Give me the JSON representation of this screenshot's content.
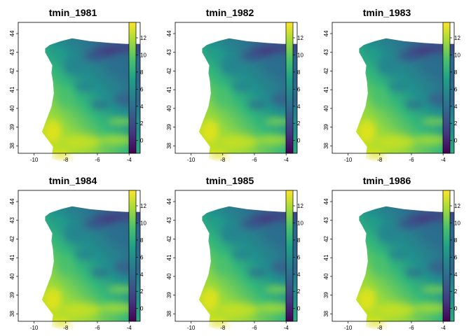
{
  "figure": {
    "panels": [
      {
        "title": "tmin_1981"
      },
      {
        "title": "tmin_1982"
      },
      {
        "title": "tmin_1983"
      },
      {
        "title": "tmin_1984"
      },
      {
        "title": "tmin_1985"
      },
      {
        "title": "tmin_1986"
      }
    ],
    "longitude_ticks": [
      "-10",
      "-8",
      "-6",
      "-4"
    ],
    "latitude_ticks": [
      "38",
      "39",
      "40",
      "41",
      "42",
      "43",
      "44"
    ],
    "colorbar": {
      "min": -1.5,
      "max": 13.8,
      "ticks": [
        "0",
        "2",
        "4",
        "6",
        "8",
        "10",
        "12"
      ],
      "palette": [
        "#440154",
        "#46337e",
        "#365c8d",
        "#277f8e",
        "#1fa187",
        "#4ac16d",
        "#9fda3a",
        "#fde725"
      ]
    },
    "map_extent": {
      "lon": [
        -11.0,
        -3.3
      ],
      "lat": [
        37.6,
        44.6
      ]
    },
    "background": "#ffffff"
  }
}
